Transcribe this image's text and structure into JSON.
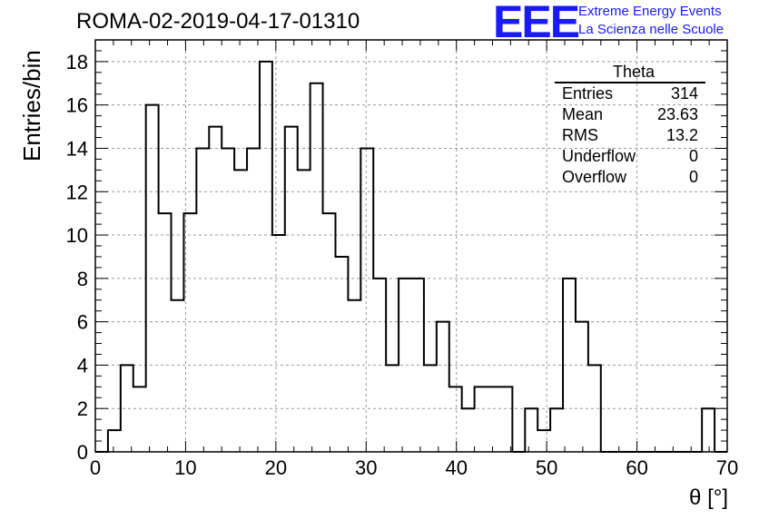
{
  "header": {
    "title": "ROMA-02-2019-04-17-01310",
    "logo_mark": "EEE",
    "logo_line1": "Extreme Energy Events",
    "logo_line2": "La Scienza nelle Scuole",
    "brand_color": "#1a1aff"
  },
  "stats_box": {
    "title": "Theta",
    "rows": [
      {
        "label": "Entries",
        "value": "314"
      },
      {
        "label": "Mean",
        "value": "23.63"
      },
      {
        "label": "RMS",
        "value": "13.2"
      },
      {
        "label": "Underflow",
        "value": "0"
      },
      {
        "label": "Overflow",
        "value": "0"
      }
    ]
  },
  "chart_data": {
    "type": "bar",
    "title": "ROMA-02-2019-04-17-01310",
    "xlabel": "θ [°]",
    "ylabel": "Entries/bin",
    "xlim": [
      0,
      70
    ],
    "ylim": [
      0,
      19
    ],
    "bin_width": 1.4,
    "bin_edges_start": 0,
    "counts": [
      0,
      1,
      4,
      3,
      16,
      11,
      7,
      11,
      14,
      15,
      14,
      13,
      14,
      18,
      10,
      15,
      13,
      17,
      11,
      9,
      7,
      14,
      8,
      4,
      8,
      8,
      4,
      6,
      3,
      2,
      3,
      3,
      3,
      0,
      2,
      1,
      2,
      8,
      6,
      4,
      0,
      0,
      0,
      0,
      0,
      0,
      0,
      0,
      2,
      0
    ],
    "xticks": [
      0,
      10,
      20,
      30,
      40,
      50,
      60,
      70
    ],
    "yticks": [
      0,
      2,
      4,
      6,
      8,
      10,
      12,
      14,
      16,
      18
    ],
    "grid": true
  }
}
